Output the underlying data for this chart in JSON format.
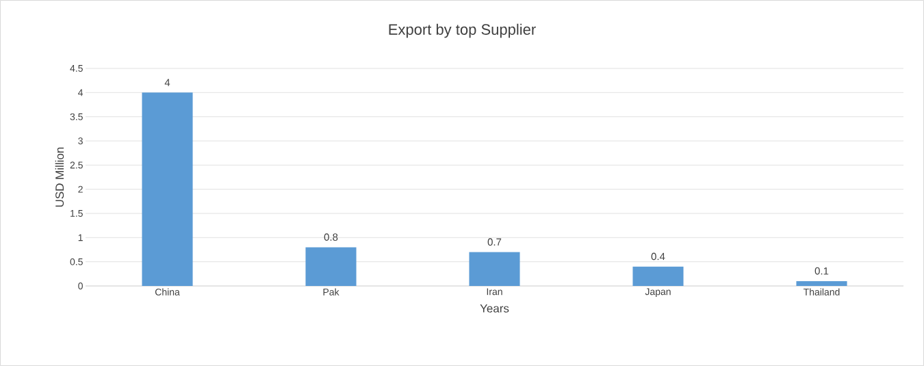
{
  "chart_data": {
    "type": "bar",
    "title": "Export by top Supplier",
    "xlabel": "Years",
    "ylabel": "USD Million",
    "categories": [
      "China",
      "Pak",
      "Iran",
      "Japan",
      "Thailand"
    ],
    "values": [
      4,
      0.8,
      0.7,
      0.4,
      0.1
    ],
    "color": "#5b9bd5",
    "ylim": [
      0,
      4.5
    ],
    "yticks": [
      0,
      0.5,
      1,
      1.5,
      2,
      2.5,
      3,
      3.5,
      4,
      4.5
    ],
    "grid": "y",
    "data_labels": true
  }
}
